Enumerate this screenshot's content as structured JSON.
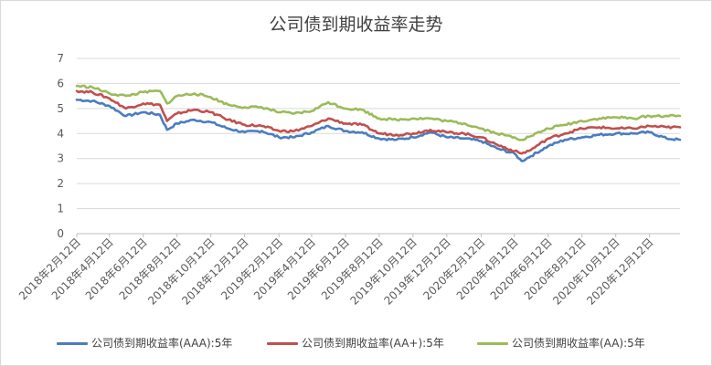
{
  "chart_data": {
    "type": "line",
    "title": "公司债到期收益率走势",
    "xlabel": "",
    "ylabel": "",
    "ylim": [
      0,
      7
    ],
    "yticks": [
      "0",
      "1",
      "2",
      "3",
      "4",
      "5",
      "6",
      "7"
    ],
    "grid": true,
    "legend_position": "bottom",
    "x_tick_labels": [
      "2018年2月12日",
      "2018年4月12日",
      "2018年6月12日",
      "2018年8月12日",
      "2018年10月12日",
      "2018年12月12日",
      "2019年2月12日",
      "2019年4月12日",
      "2019年6月12日",
      "2019年8月12日",
      "2019年10月12日",
      "2019年12月12日",
      "2020年2月12日",
      "2020年4月12日",
      "2020年6月12日",
      "2020年8月12日",
      "2020年10月12日",
      "2020年12月12日"
    ],
    "x": [
      "2018-02-12",
      "2018-03-12",
      "2018-04-12",
      "2018-05-12",
      "2018-06-12",
      "2018-07-12",
      "2018-07-25",
      "2018-08-12",
      "2018-09-12",
      "2018-10-12",
      "2018-11-12",
      "2018-12-12",
      "2019-01-12",
      "2019-02-12",
      "2019-03-12",
      "2019-04-12",
      "2019-05-12",
      "2019-06-12",
      "2019-07-12",
      "2019-08-12",
      "2019-09-12",
      "2019-10-12",
      "2019-11-12",
      "2019-12-12",
      "2020-01-12",
      "2020-02-12",
      "2020-03-12",
      "2020-04-12",
      "2020-04-25",
      "2020-05-12",
      "2020-06-12",
      "2020-07-12",
      "2020-08-12",
      "2020-09-12",
      "2020-10-12",
      "2020-11-12",
      "2020-12-12",
      "2021-01-12",
      "2021-02-05"
    ],
    "series": [
      {
        "name": "公司债到期收益率(AAA):5年",
        "color": "#4a7dbf",
        "values": [
          5.35,
          5.3,
          5.1,
          4.7,
          4.85,
          4.75,
          4.15,
          4.4,
          4.55,
          4.45,
          4.2,
          4.05,
          4.1,
          3.85,
          3.85,
          4.05,
          4.3,
          4.1,
          4.05,
          3.8,
          3.75,
          3.85,
          4.05,
          3.85,
          3.8,
          3.7,
          3.4,
          3.2,
          2.9,
          3.1,
          3.5,
          3.75,
          3.85,
          3.95,
          4.0,
          4.0,
          4.05,
          3.8,
          3.75
        ]
      },
      {
        "name": "公司债到期收益率(AA+):5年",
        "color": "#c0504d",
        "values": [
          5.7,
          5.65,
          5.4,
          5.0,
          5.2,
          5.15,
          4.5,
          4.8,
          4.95,
          4.85,
          4.55,
          4.35,
          4.3,
          4.1,
          4.1,
          4.3,
          4.6,
          4.4,
          4.35,
          4.0,
          3.95,
          4.0,
          4.15,
          4.05,
          4.0,
          3.85,
          3.55,
          3.3,
          3.2,
          3.35,
          3.8,
          4.0,
          4.2,
          4.25,
          4.2,
          4.2,
          4.3,
          4.25,
          4.25
        ]
      },
      {
        "name": "公司债到期收益率(AA):5年",
        "color": "#9bbb59",
        "values": [
          5.9,
          5.85,
          5.6,
          5.5,
          5.65,
          5.7,
          5.2,
          5.5,
          5.6,
          5.45,
          5.15,
          5.05,
          5.05,
          4.85,
          4.8,
          4.9,
          5.25,
          5.0,
          4.95,
          4.6,
          4.55,
          4.6,
          4.6,
          4.5,
          4.4,
          4.2,
          4.0,
          3.85,
          3.75,
          3.9,
          4.2,
          4.35,
          4.5,
          4.6,
          4.65,
          4.6,
          4.7,
          4.7,
          4.7
        ]
      }
    ]
  }
}
